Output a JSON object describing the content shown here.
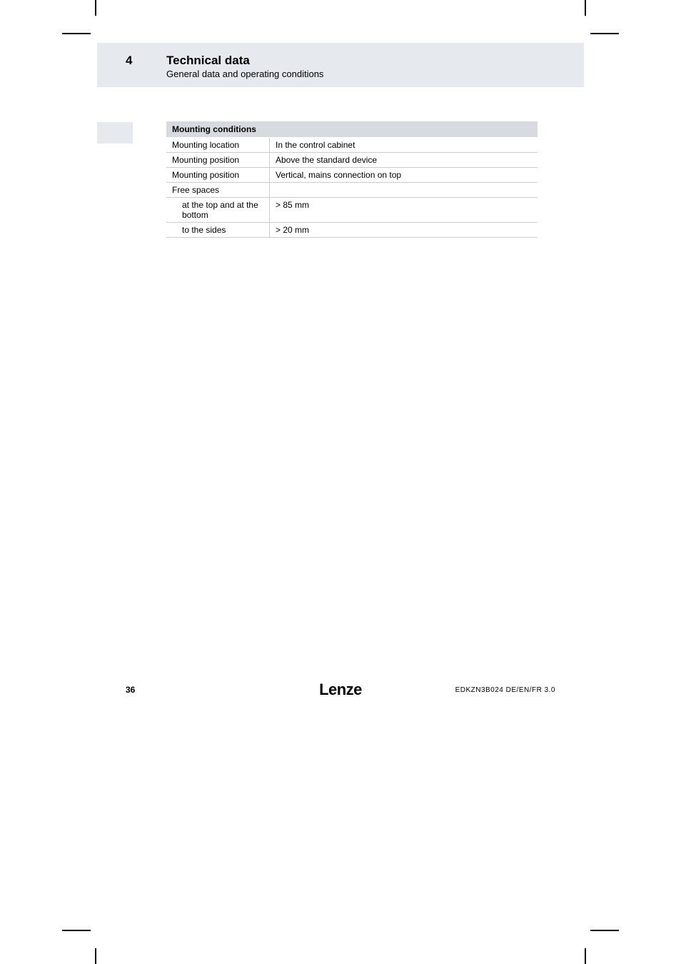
{
  "header": {
    "chapter_number": "4",
    "title": "Technical data",
    "subtitle": "General data and operating conditions"
  },
  "table": {
    "header": "Mounting conditions",
    "rows": [
      {
        "label": "Mounting location",
        "value": "In the control cabinet",
        "indent": false
      },
      {
        "label": "Mounting position",
        "value": "Above the standard device",
        "indent": false
      },
      {
        "label": "Mounting position",
        "value": "Vertical, mains connection on top",
        "indent": false
      },
      {
        "label": "Free spaces",
        "value": "",
        "indent": false
      },
      {
        "label": "at the top and at the bottom",
        "value": "> 85 mm",
        "indent": true
      },
      {
        "label": "to the sides",
        "value": "> 20 mm",
        "indent": true
      }
    ]
  },
  "footer": {
    "page": "36",
    "brand": "Lenze",
    "doc_code": "EDKZN3B024  DE/EN/FR  3.0"
  },
  "colors": {
    "band_bg": "#e6e9ed",
    "table_header_bg": "#d7dbe0",
    "border": "#cccccc",
    "text": "#000000",
    "background": "#ffffff"
  }
}
